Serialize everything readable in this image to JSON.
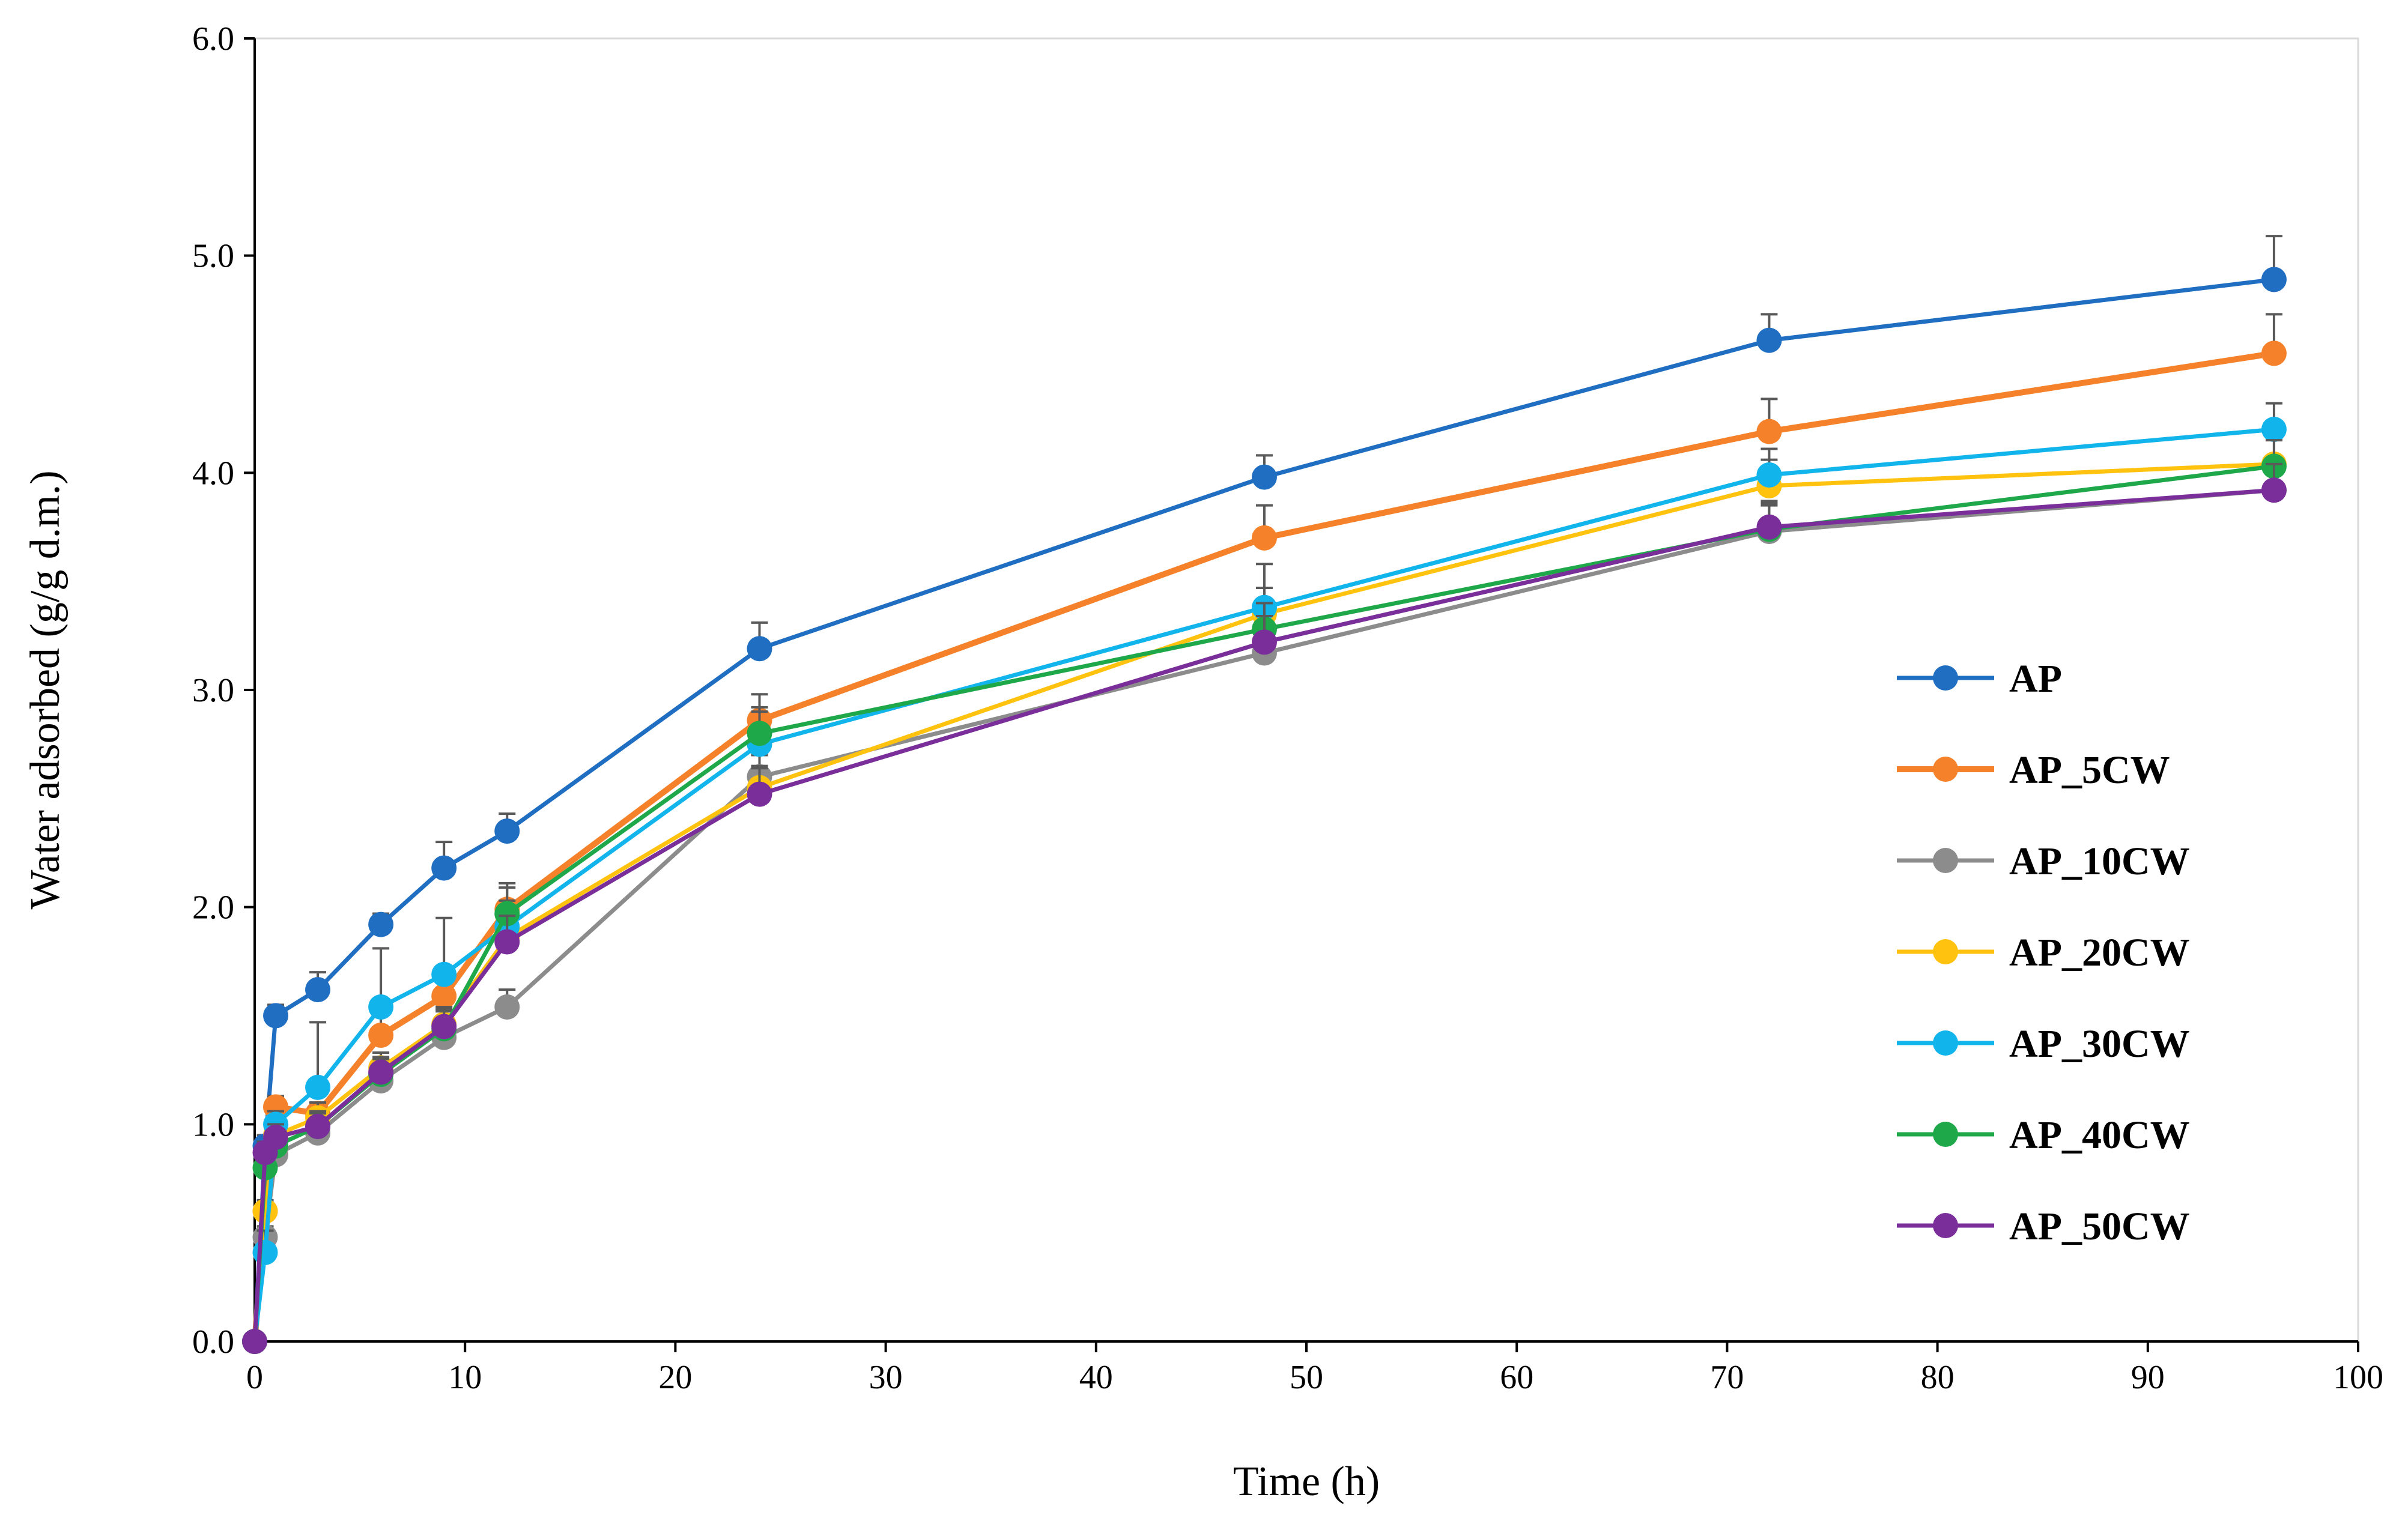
{
  "chart_data": {
    "type": "line",
    "title": "",
    "xlabel": "Time (h)",
    "ylabel": "Water adsorbed (g/g d.m.)",
    "xlim": [
      0,
      100
    ],
    "ylim": [
      0,
      6
    ],
    "xticks": [
      0,
      10,
      20,
      30,
      40,
      50,
      60,
      70,
      80,
      90,
      100
    ],
    "xtick_labels": [
      "0",
      "10",
      "20",
      "30",
      "40",
      "50",
      "60",
      "70",
      "80",
      "90",
      "100"
    ],
    "yticks": [
      0,
      1,
      2,
      3,
      4,
      5,
      6
    ],
    "ytick_labels": [
      "0.0",
      "1.0",
      "2.0",
      "3.0",
      "4.0",
      "5.0",
      "6.0"
    ],
    "grid": false,
    "legend_position": "right",
    "x": [
      0,
      0.5,
      1,
      3,
      6,
      9,
      12,
      24,
      48,
      72,
      96
    ],
    "series": [
      {
        "name": "AP",
        "color": "#1F6EC1",
        "values": [
          0,
          0.9,
          1.5,
          1.62,
          1.92,
          2.18,
          2.35,
          3.19,
          3.98,
          4.61,
          4.89
        ],
        "errors": [
          0,
          0.05,
          0.05,
          0.08,
          0.05,
          0.12,
          0.08,
          0.12,
          0.1,
          0.12,
          0.2
        ]
      },
      {
        "name": "AP_5CW",
        "color": "#F5822A",
        "values": [
          0,
          0.6,
          1.08,
          1.05,
          1.41,
          1.59,
          1.99,
          2.86,
          3.7,
          4.19,
          4.55
        ],
        "errors": [
          0,
          0.05,
          0.05,
          0.05,
          0.1,
          0.1,
          0.12,
          0.12,
          0.15,
          0.15,
          0.18
        ]
      },
      {
        "name": "AP_10CW",
        "color": "#8C8C8C",
        "values": [
          0,
          0.48,
          0.86,
          0.96,
          1.2,
          1.4,
          1.54,
          2.6,
          3.17,
          3.73,
          3.92
        ],
        "errors": [
          0,
          0.05,
          0.06,
          0.06,
          0.06,
          0.08,
          0.08,
          0.1,
          0.1,
          0.12,
          0.12
        ]
      },
      {
        "name": "AP_20CW",
        "color": "#FFC20E",
        "values": [
          0,
          0.6,
          0.95,
          1.03,
          1.26,
          1.46,
          1.86,
          2.55,
          3.35,
          3.94,
          4.04
        ],
        "errors": [
          0,
          0.05,
          0.06,
          0.07,
          0.07,
          0.08,
          0.1,
          0.1,
          0.12,
          0.12,
          0.12
        ]
      },
      {
        "name": "AP_30CW",
        "color": "#12B4EC",
        "values": [
          0,
          0.41,
          1.0,
          1.17,
          1.54,
          1.69,
          1.91,
          2.75,
          3.38,
          3.99,
          4.2
        ],
        "errors": [
          0,
          0.1,
          0.06,
          0.3,
          0.27,
          0.26,
          0.12,
          0.15,
          0.2,
          0.12,
          0.12
        ]
      },
      {
        "name": "AP_40CW",
        "color": "#1EA84A",
        "values": [
          0,
          0.8,
          0.9,
          0.99,
          1.23,
          1.44,
          1.97,
          2.8,
          3.28,
          3.74,
          4.03
        ],
        "errors": [
          0,
          0.05,
          0.06,
          0.06,
          0.07,
          0.08,
          0.12,
          0.12,
          0.12,
          0.12,
          0.12
        ]
      },
      {
        "name": "AP_50CW",
        "color": "#7A2E9A",
        "values": [
          0,
          0.87,
          0.94,
          0.99,
          1.24,
          1.45,
          1.84,
          2.52,
          3.22,
          3.75,
          3.92
        ],
        "errors": [
          0,
          0.05,
          0.06,
          0.07,
          0.07,
          0.08,
          0.12,
          0.12,
          0.12,
          0.12,
          0.12
        ]
      }
    ]
  }
}
